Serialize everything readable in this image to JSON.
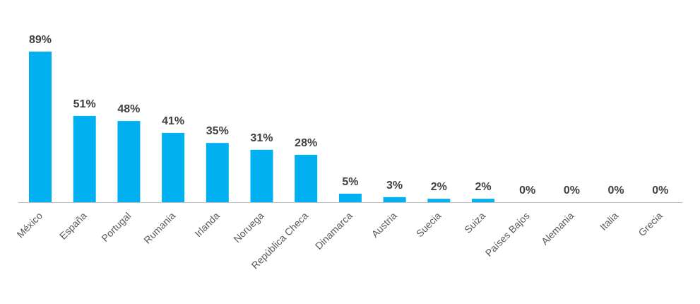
{
  "chart_data": {
    "type": "bar",
    "categories": [
      "México",
      "España",
      "Portugal",
      "Rumania",
      "Irlanda",
      "Noruega",
      "República Checa",
      "Dinamarca",
      "Austria",
      "Suecia",
      "Suiza",
      "Países Bajos",
      "Alemania",
      "Italia",
      "Grecia"
    ],
    "values": [
      89,
      51,
      48,
      41,
      35,
      31,
      28,
      5,
      3,
      2,
      2,
      0,
      0,
      0,
      0
    ],
    "data_labels": [
      "89%",
      "51%",
      "48%",
      "41%",
      "35%",
      "31%",
      "28%",
      "5%",
      "3%",
      "2%",
      "2%",
      "0%",
      "0%",
      "0%",
      "0%"
    ],
    "title": "",
    "xlabel": "",
    "ylabel": "",
    "ylim": [
      0,
      89
    ],
    "grid": false,
    "legend": "none",
    "colors": {
      "bar": "#00B0F0",
      "label": "#404040",
      "tick": "#595959",
      "axis": "#BFBFBF"
    }
  }
}
